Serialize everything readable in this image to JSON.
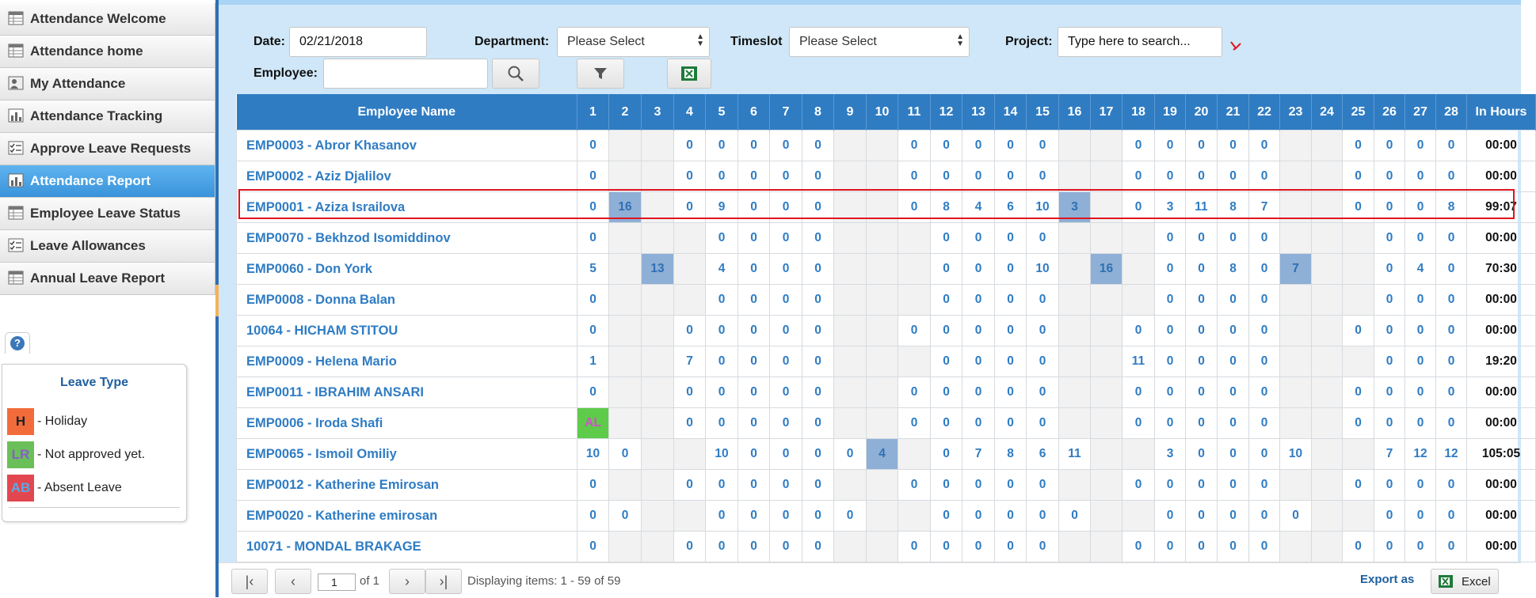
{
  "sidebar": {
    "items": [
      {
        "label": "Attendance Welcome",
        "icon": "table-icon"
      },
      {
        "label": "Attendance home",
        "icon": "table-icon"
      },
      {
        "label": "My Attendance",
        "icon": "person-icon"
      },
      {
        "label": "Attendance Tracking",
        "icon": "chart-icon"
      },
      {
        "label": "Approve Leave Requests",
        "icon": "checklist-icon"
      },
      {
        "label": "Attendance Report",
        "icon": "chart-icon",
        "active": true
      },
      {
        "label": "Employee Leave Status",
        "icon": "table-icon"
      },
      {
        "label": "Leave Allowances",
        "icon": "checklist-icon"
      },
      {
        "label": "Annual Leave Report",
        "icon": "table-icon"
      }
    ]
  },
  "legend": {
    "help_glyph": "?",
    "title": "Leave Type",
    "items": [
      {
        "code": "H",
        "label": "- Holiday",
        "color": "#f26b3a",
        "text_color": "#222"
      },
      {
        "code": "LR",
        "label": "- Not approved yet.",
        "color": "#6bbf59",
        "text_color": "#8a5fc9"
      },
      {
        "code": "AB",
        "label": "- Absent Leave",
        "color": "#e2474f",
        "text_color": "#5aa9e6"
      }
    ]
  },
  "filters": {
    "date_label": "Date:",
    "date_value": "02/21/2018",
    "department_label": "Department:",
    "department_value": "Please Select",
    "timeslot_label": "Timeslot",
    "timeslot_value": "Please Select",
    "project_label": "Project:",
    "project_placeholder": "Type here to search...",
    "employee_label": "Employee:",
    "employee_value": ""
  },
  "grid": {
    "name_header": "Employee Name",
    "days": [
      "1",
      "2",
      "3",
      "4",
      "5",
      "6",
      "7",
      "8",
      "9",
      "10",
      "11",
      "12",
      "13",
      "14",
      "15",
      "16",
      "17",
      "18",
      "19",
      "20",
      "21",
      "22",
      "23",
      "24",
      "25",
      "26",
      "27",
      "28"
    ],
    "hours_header": "In Hours",
    "rows": [
      {
        "name": "EMP0003 - Abror Khasanov",
        "cells": [
          "0",
          "",
          "",
          "0",
          "0",
          "0",
          "0",
          "0",
          "",
          "",
          "0",
          "0",
          "0",
          "0",
          "0",
          "",
          "",
          "0",
          "0",
          "0",
          "0",
          "0",
          "",
          "",
          "0",
          "0",
          "0",
          "0"
        ],
        "hours": "00:00"
      },
      {
        "name": "EMP0002 - Aziz Djalilov",
        "cells": [
          "0",
          "",
          "",
          "0",
          "0",
          "0",
          "0",
          "0",
          "",
          "",
          "0",
          "0",
          "0",
          "0",
          "0",
          "",
          "",
          "0",
          "0",
          "0",
          "0",
          "0",
          "",
          "",
          "0",
          "0",
          "0",
          "0"
        ],
        "hours": "00:00"
      },
      {
        "name": "EMP0001 - Aziza Israilova",
        "cells": [
          "0",
          "16*",
          "",
          "0",
          "9",
          "0",
          "0",
          "0",
          "",
          "",
          "0",
          "8",
          "4",
          "6",
          "10",
          "3*",
          "",
          "0",
          "3",
          "11",
          "8",
          "7",
          "",
          "",
          "0",
          "0",
          "0",
          "8"
        ],
        "hours": "99:07",
        "selected": true
      },
      {
        "name": "EMP0070 - Bekhzod Isomiddinov",
        "cells": [
          "0",
          "",
          "",
          "",
          "0",
          "0",
          "0",
          "0",
          "",
          "",
          "",
          "0",
          "0",
          "0",
          "0",
          "",
          "",
          "",
          "0",
          "0",
          "0",
          "0",
          "",
          "",
          "",
          "0",
          "0",
          "0"
        ],
        "hours": "00:00"
      },
      {
        "name": "EMP0060 - Don York",
        "cells": [
          "5",
          "",
          "13*",
          "",
          "4",
          "0",
          "0",
          "0",
          "",
          "",
          "",
          "0",
          "0",
          "0",
          "10",
          "",
          "16*",
          "",
          "0",
          "0",
          "8",
          "0",
          "7*",
          "",
          "",
          "0",
          "4",
          "0"
        ],
        "hours": "70:30"
      },
      {
        "name": "EMP0008 - Donna Balan",
        "cells": [
          "0",
          "",
          "",
          "",
          "0",
          "0",
          "0",
          "0",
          "",
          "",
          "",
          "0",
          "0",
          "0",
          "0",
          "",
          "",
          "",
          "0",
          "0",
          "0",
          "0",
          "",
          "",
          "",
          "0",
          "0",
          "0"
        ],
        "hours": "00:00"
      },
      {
        "name": "10064 - HICHAM STITOU",
        "cells": [
          "0",
          "",
          "",
          "0",
          "0",
          "0",
          "0",
          "0",
          "",
          "",
          "0",
          "0",
          "0",
          "0",
          "0",
          "",
          "",
          "0",
          "0",
          "0",
          "0",
          "0",
          "",
          "",
          "0",
          "0",
          "0",
          "0"
        ],
        "hours": "00:00"
      },
      {
        "name": "EMP0009 - Helena Mario",
        "cells": [
          "1",
          "",
          "",
          "7",
          "0",
          "0",
          "0",
          "0",
          "",
          "",
          "",
          "0",
          "0",
          "0",
          "0",
          "",
          "",
          "11",
          "0",
          "0",
          "0",
          "0",
          "",
          "",
          "",
          "0",
          "0",
          "0"
        ],
        "hours": "19:20"
      },
      {
        "name": "EMP0011 - IBRAHIM ANSARI",
        "cells": [
          "0",
          "",
          "",
          "0",
          "0",
          "0",
          "0",
          "0",
          "",
          "",
          "0",
          "0",
          "0",
          "0",
          "0",
          "",
          "",
          "0",
          "0",
          "0",
          "0",
          "0",
          "",
          "",
          "0",
          "0",
          "0",
          "0"
        ],
        "hours": "00:00"
      },
      {
        "name": "EMP0006 - Iroda Shafi",
        "cells": [
          "AL",
          "",
          "",
          "0",
          "0",
          "0",
          "0",
          "0",
          "",
          "",
          "0",
          "0",
          "0",
          "0",
          "0",
          "",
          "",
          "0",
          "0",
          "0",
          "0",
          "0",
          "",
          "",
          "0",
          "0",
          "0",
          "0"
        ],
        "hours": "00:00"
      },
      {
        "name": "EMP0065 - Ismoil Omiliy",
        "cells": [
          "10",
          "0",
          "",
          "",
          "10",
          "0",
          "0",
          "0",
          "0",
          "4*",
          "",
          "0",
          "7",
          "8",
          "6",
          "11",
          "",
          "",
          "3",
          "0",
          "0",
          "0",
          "10",
          "",
          "",
          "7",
          "12",
          "12"
        ],
        "hours": "105:05"
      },
      {
        "name": "EMP0012 - Katherine Emirosan",
        "cells": [
          "0",
          "",
          "",
          "0",
          "0",
          "0",
          "0",
          "0",
          "",
          "",
          "0",
          "0",
          "0",
          "0",
          "0",
          "",
          "",
          "0",
          "0",
          "0",
          "0",
          "0",
          "",
          "",
          "0",
          "0",
          "0",
          "0"
        ],
        "hours": "00:00"
      },
      {
        "name": "EMP0020 - Katherine emirosan",
        "cells": [
          "0",
          "0",
          "",
          "",
          "0",
          "0",
          "0",
          "0",
          "0",
          "",
          "",
          "0",
          "0",
          "0",
          "0",
          "0",
          "",
          "",
          "0",
          "0",
          "0",
          "0",
          "0",
          "",
          "",
          "0",
          "0",
          "0"
        ],
        "hours": "00:00"
      },
      {
        "name": "10071 - MONDAL BRAKAGE",
        "cells": [
          "0",
          "",
          "",
          "0",
          "0",
          "0",
          "0",
          "0",
          "",
          "",
          "0",
          "0",
          "0",
          "0",
          "0",
          "",
          "",
          "0",
          "0",
          "0",
          "0",
          "0",
          "",
          "",
          "0",
          "0",
          "0",
          "0"
        ],
        "hours": "00:00"
      }
    ]
  },
  "pager": {
    "page_value": "1",
    "of_text": "of 1",
    "info": "Displaying items: 1 - 59 of 59",
    "export_label": "Export as",
    "excel_label": "Excel"
  },
  "colors": {
    "accent": "#2f7cc3",
    "active_nav": "#3a93da",
    "selection_border": "#e0141e",
    "highlight_cell": "#8eafd6",
    "leave_cell": "#5ecb4a"
  }
}
